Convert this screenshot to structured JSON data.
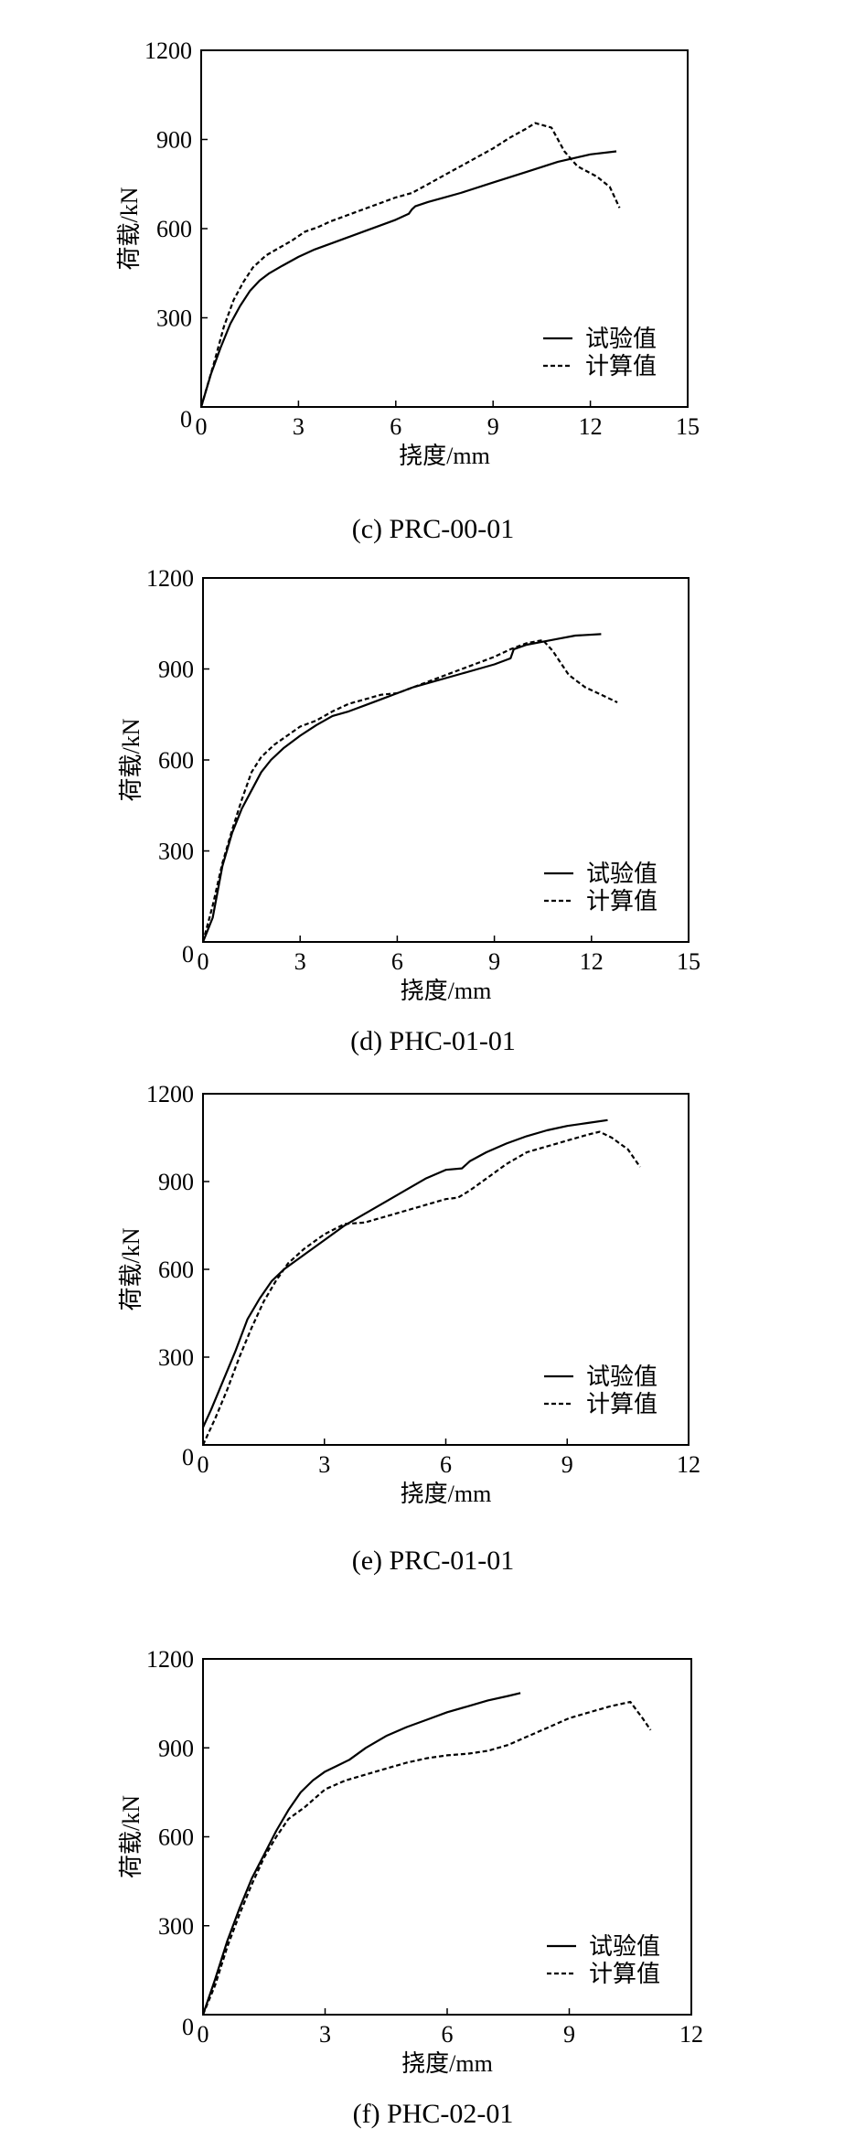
{
  "legend": {
    "test": "试验值",
    "calc": "计算值"
  },
  "chart_data": [
    {
      "type": "line",
      "caption": "(c) PRC-00-01",
      "xlabel": "挠度/mm",
      "ylabel": "荷载/kN",
      "xlim": [
        0,
        15
      ],
      "ylim": [
        0,
        1200
      ],
      "xticks": [
        0,
        3,
        6,
        9,
        12,
        15
      ],
      "yticks": [
        0,
        300,
        600,
        900,
        1200
      ],
      "legend_position": "bottom-right",
      "series": [
        {
          "name": "试验值",
          "style": "solid",
          "x": [
            0,
            0.3,
            0.6,
            0.9,
            1.2,
            1.5,
            1.8,
            2.1,
            2.5,
            3.0,
            3.5,
            4.0,
            4.5,
            5.0,
            5.5,
            6.0,
            6.4,
            6.5,
            6.6,
            7.0,
            7.5,
            8.0,
            9.0,
            10.0,
            11.0,
            12.0,
            12.8
          ],
          "y": [
            0,
            110,
            200,
            280,
            340,
            390,
            425,
            450,
            475,
            505,
            530,
            550,
            570,
            590,
            610,
            630,
            650,
            665,
            675,
            690,
            705,
            720,
            755,
            790,
            825,
            850,
            860
          ]
        },
        {
          "name": "计算值",
          "style": "dashed",
          "x": [
            0,
            0.4,
            0.7,
            1.0,
            1.3,
            1.6,
            2.0,
            2.4,
            2.8,
            3.2,
            3.6,
            4.0,
            4.5,
            5.0,
            5.5,
            6.0,
            6.5,
            7.0,
            7.5,
            8.0,
            8.5,
            9.0,
            9.5,
            10.0,
            10.3,
            10.8,
            11.2,
            11.6,
            12.2,
            12.6,
            12.9
          ],
          "y": [
            0,
            150,
            270,
            360,
            420,
            470,
            510,
            535,
            560,
            590,
            605,
            625,
            645,
            665,
            685,
            705,
            720,
            750,
            780,
            810,
            840,
            870,
            905,
            935,
            955,
            940,
            860,
            810,
            775,
            740,
            670
          ]
        }
      ]
    },
    {
      "type": "line",
      "caption": "(d) PHC-01-01",
      "xlabel": "挠度/mm",
      "ylabel": "荷载/kN",
      "xlim": [
        0,
        15
      ],
      "ylim": [
        0,
        1200
      ],
      "xticks": [
        0,
        3,
        6,
        9,
        12,
        15
      ],
      "yticks": [
        0,
        300,
        600,
        900,
        1200
      ],
      "legend_position": "bottom-right",
      "series": [
        {
          "name": "试验值",
          "style": "solid",
          "x": [
            0,
            0.3,
            0.6,
            0.9,
            1.2,
            1.5,
            1.8,
            2.1,
            2.5,
            3.0,
            3.5,
            4.0,
            4.5,
            5.0,
            5.5,
            6.0,
            6.5,
            7.0,
            7.5,
            8.0,
            8.5,
            9.0,
            9.5,
            9.6,
            10.0,
            10.5,
            11.0,
            11.5,
            12.3
          ],
          "y": [
            0,
            80,
            250,
            360,
            440,
            500,
            560,
            600,
            640,
            680,
            715,
            745,
            760,
            780,
            800,
            820,
            840,
            855,
            870,
            885,
            900,
            915,
            935,
            965,
            980,
            990,
            1000,
            1010,
            1015
          ]
        },
        {
          "name": "计算值",
          "style": "dashed",
          "x": [
            0,
            0.3,
            0.6,
            0.9,
            1.2,
            1.5,
            1.8,
            2.2,
            2.6,
            3.0,
            3.5,
            4.0,
            4.5,
            5.0,
            5.5,
            6.0,
            6.5,
            7.0,
            7.5,
            8.0,
            8.5,
            9.0,
            9.5,
            10.0,
            10.5,
            10.8,
            11.3,
            11.8,
            12.3,
            12.8
          ],
          "y": [
            0,
            120,
            260,
            370,
            470,
            560,
            610,
            650,
            680,
            710,
            730,
            760,
            785,
            800,
            815,
            820,
            840,
            860,
            880,
            900,
            920,
            940,
            965,
            985,
            995,
            960,
            880,
            840,
            815,
            790
          ]
        }
      ]
    },
    {
      "type": "line",
      "caption": "(e) PRC-01-01",
      "xlabel": "挠度/mm",
      "ylabel": "荷载/kN",
      "xlim": [
        0,
        12
      ],
      "ylim": [
        0,
        1200
      ],
      "xticks": [
        0,
        3,
        6,
        9,
        12
      ],
      "yticks": [
        0,
        300,
        600,
        900,
        1200
      ],
      "legend_position": "bottom-right",
      "series": [
        {
          "name": "试验值",
          "style": "solid",
          "x": [
            0,
            0.2,
            0.5,
            0.8,
            1.1,
            1.4,
            1.7,
            2.0,
            2.5,
            3.0,
            3.5,
            4.0,
            4.5,
            5.0,
            5.5,
            6.0,
            6.4,
            6.6,
            7.0,
            7.5,
            8.0,
            8.5,
            9.0,
            9.5,
            10.0
          ],
          "y": [
            60,
            120,
            220,
            320,
            430,
            500,
            560,
            600,
            650,
            700,
            750,
            790,
            830,
            870,
            910,
            940,
            945,
            970,
            1000,
            1030,
            1055,
            1075,
            1090,
            1100,
            1110
          ]
        },
        {
          "name": "计算值",
          "style": "dashed",
          "x": [
            0,
            0.3,
            0.6,
            0.9,
            1.2,
            1.5,
            1.8,
            2.1,
            2.5,
            3.0,
            3.5,
            4.0,
            4.5,
            5.0,
            5.5,
            6.0,
            6.3,
            6.6,
            7.0,
            7.5,
            8.0,
            8.5,
            9.0,
            9.5,
            9.8,
            10.1,
            10.5,
            10.8
          ],
          "y": [
            0,
            90,
            190,
            300,
            400,
            490,
            560,
            620,
            670,
            720,
            755,
            760,
            780,
            800,
            820,
            840,
            845,
            870,
            910,
            960,
            1000,
            1020,
            1040,
            1060,
            1070,
            1050,
            1010,
            950
          ]
        }
      ]
    },
    {
      "type": "line",
      "caption": "(f) PHC-02-01",
      "xlabel": "挠度/mm",
      "ylabel": "荷载/kN",
      "xlim": [
        0,
        12
      ],
      "ylim": [
        0,
        1200
      ],
      "xticks": [
        0,
        3,
        6,
        9,
        12
      ],
      "yticks": [
        0,
        300,
        600,
        900,
        1200
      ],
      "legend_position": "bottom-right",
      "series": [
        {
          "name": "试验值",
          "style": "solid",
          "x": [
            0,
            0.3,
            0.6,
            0.9,
            1.2,
            1.5,
            1.8,
            2.1,
            2.4,
            2.7,
            3.0,
            3.3,
            3.6,
            4.0,
            4.5,
            5.0,
            5.5,
            6.0,
            6.5,
            7.0,
            7.5,
            7.8
          ],
          "y": [
            0,
            120,
            250,
            360,
            460,
            540,
            620,
            690,
            750,
            790,
            820,
            840,
            860,
            900,
            940,
            970,
            995,
            1020,
            1040,
            1060,
            1075,
            1085
          ]
        },
        {
          "name": "计算值",
          "style": "dashed",
          "x": [
            0,
            0.3,
            0.6,
            0.9,
            1.2,
            1.5,
            1.8,
            2.1,
            2.5,
            3.0,
            3.5,
            4.0,
            4.5,
            5.0,
            5.5,
            6.0,
            6.5,
            7.0,
            7.5,
            8.0,
            8.5,
            9.0,
            9.5,
            10.0,
            10.5,
            10.8,
            11.0
          ],
          "y": [
            0,
            100,
            230,
            340,
            440,
            530,
            600,
            660,
            700,
            760,
            790,
            810,
            830,
            850,
            865,
            875,
            880,
            890,
            910,
            940,
            970,
            1000,
            1020,
            1040,
            1055,
            1000,
            960
          ]
        }
      ]
    }
  ]
}
